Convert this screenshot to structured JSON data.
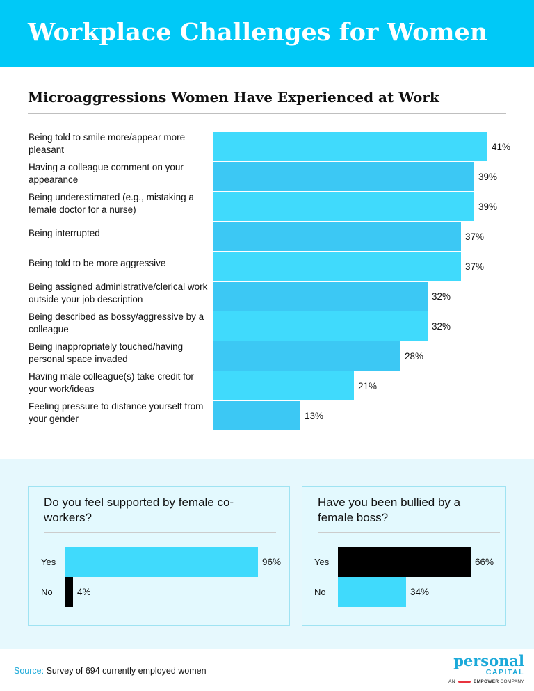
{
  "header": {
    "title": "Workplace Challenges for Women"
  },
  "chart_data": [
    {
      "type": "bar",
      "orientation": "horizontal",
      "title": "Microaggressions Women Have Experienced at Work",
      "categories": [
        "Being told to smile more/appear more pleasant",
        "Having a colleague comment on your appearance",
        "Being underestimated (e.g., mistaking a female doctor for a nurse)",
        "Being interrupted",
        "Being told to be more aggressive",
        "Being assigned administrative/clerical work outside your job description",
        "Being described as bossy/aggressive by a colleague",
        "Being inappropriately touched/having personal space invaded",
        "Having male colleague(s) take credit for your work/ideas",
        "Feeling pressure to distance yourself from your gender"
      ],
      "values": [
        41,
        39,
        39,
        37,
        37,
        32,
        32,
        28,
        21,
        13
      ],
      "value_labels": [
        "41%",
        "39%",
        "39%",
        "37%",
        "37%",
        "32%",
        "32%",
        "28%",
        "21%",
        "13%"
      ],
      "colors": [
        "#40dafc",
        "#3cc8f4"
      ],
      "xlim": [
        0,
        41
      ]
    },
    {
      "type": "bar",
      "orientation": "horizontal",
      "title": "Do you feel supported by female co-workers?",
      "categories": [
        "Yes",
        "No"
      ],
      "values": [
        96,
        4
      ],
      "value_labels": [
        "96%",
        "4%"
      ],
      "colors": [
        "#40dafc",
        "#000000"
      ],
      "xlim": [
        0,
        96
      ]
    },
    {
      "type": "bar",
      "orientation": "horizontal",
      "title": "Have you been bullied by a female boss?",
      "categories": [
        "Yes",
        "No"
      ],
      "values": [
        66,
        34
      ],
      "value_labels": [
        "66%",
        "34%"
      ],
      "colors": [
        "#000000",
        "#40dafc"
      ],
      "xlim": [
        0,
        66
      ]
    }
  ],
  "footer": {
    "source_label": "Source:",
    "source_text": "Survey of 694 currently employed women",
    "logo_main": "personal",
    "logo_sub": "CAPITAL",
    "logo_tag_prefix": "AN",
    "logo_tag_brand": "EMPOWER",
    "logo_tag_suffix": "COMPANY"
  }
}
